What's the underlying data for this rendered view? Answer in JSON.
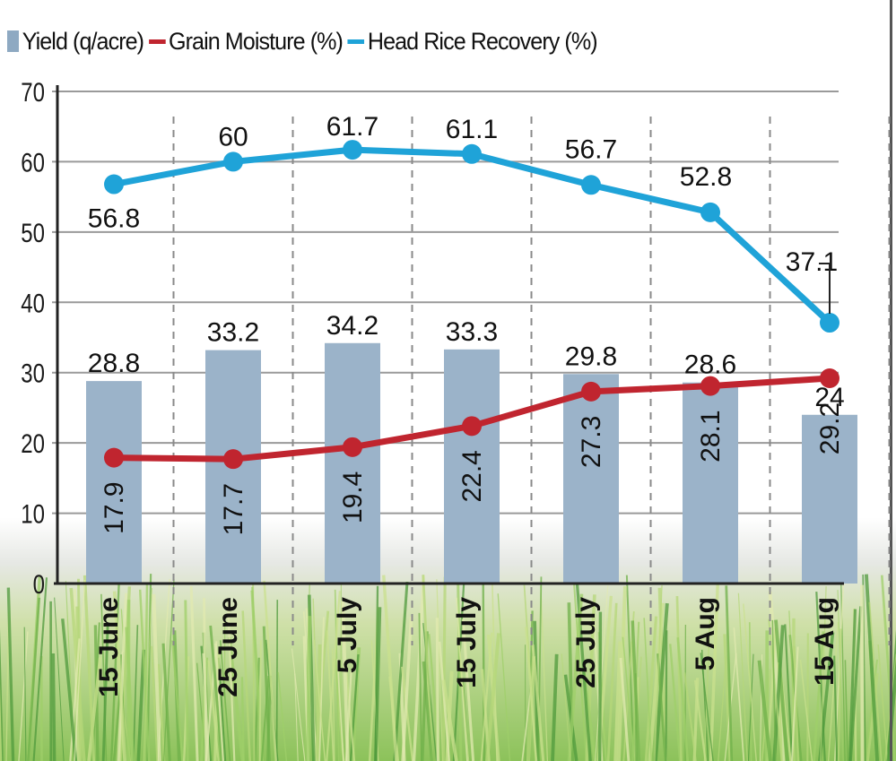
{
  "chart_data": {
    "type": "bar",
    "title": "",
    "xlabel": "",
    "ylabel": "",
    "ylim": [
      0,
      70
    ],
    "yticks": [
      0,
      10,
      20,
      30,
      40,
      50,
      60,
      70
    ],
    "grid": true,
    "legend_position": "top",
    "categories": [
      "15 June",
      "25 June",
      "5 July",
      "15 July",
      "25 July",
      "5 Aug",
      "15 Aug"
    ],
    "series": [
      {
        "name": "Yield (q/acre)",
        "type": "bar",
        "color": "#9bb3c9",
        "values": [
          28.8,
          33.2,
          34.2,
          33.3,
          29.8,
          28.6,
          24
        ]
      },
      {
        "name": "Grain Moisture (%)",
        "type": "line",
        "color": "#c0252f",
        "values": [
          17.9,
          17.7,
          19.4,
          22.4,
          27.3,
          28.1,
          29.2
        ]
      },
      {
        "name": "Head Rice Recovery (%)",
        "type": "line",
        "color": "#1fa3d8",
        "values": [
          56.8,
          60,
          61.7,
          61.1,
          56.7,
          52.8,
          37.1
        ]
      }
    ]
  },
  "legend": {
    "items": [
      {
        "label": "Yield (q/acre)",
        "kind": "bar",
        "color": "#9bb3c9"
      },
      {
        "label": "Grain Moisture (%)",
        "kind": "line",
        "color": "#c0252f"
      },
      {
        "label": "Head Rice Recovery (%)",
        "kind": "line",
        "color": "#1fa3d8"
      }
    ]
  }
}
